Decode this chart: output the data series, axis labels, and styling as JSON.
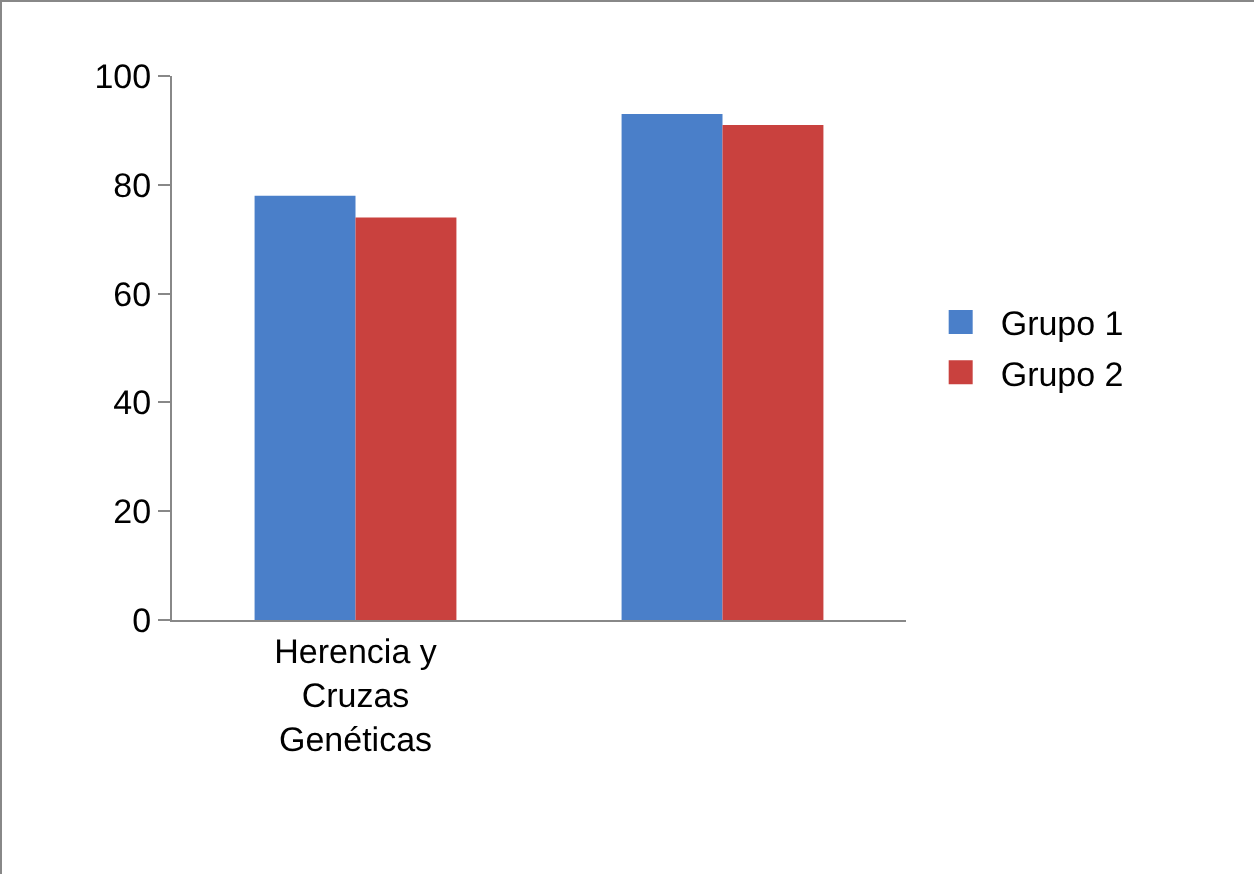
{
  "chart_data": {
    "type": "bar",
    "categories": [
      "Herencia y Cruzas Genéticas",
      null
    ],
    "series": [
      {
        "name": "Grupo 1",
        "color": "#4a7fc9",
        "values": [
          78,
          93
        ]
      },
      {
        "name": "Grupo 2",
        "color": "#c9413e",
        "values": [
          74,
          91
        ]
      }
    ],
    "ylim": [
      0,
      100
    ],
    "yticks": [
      0,
      20,
      40,
      60,
      80,
      100
    ],
    "grid": false,
    "legend": "right"
  }
}
